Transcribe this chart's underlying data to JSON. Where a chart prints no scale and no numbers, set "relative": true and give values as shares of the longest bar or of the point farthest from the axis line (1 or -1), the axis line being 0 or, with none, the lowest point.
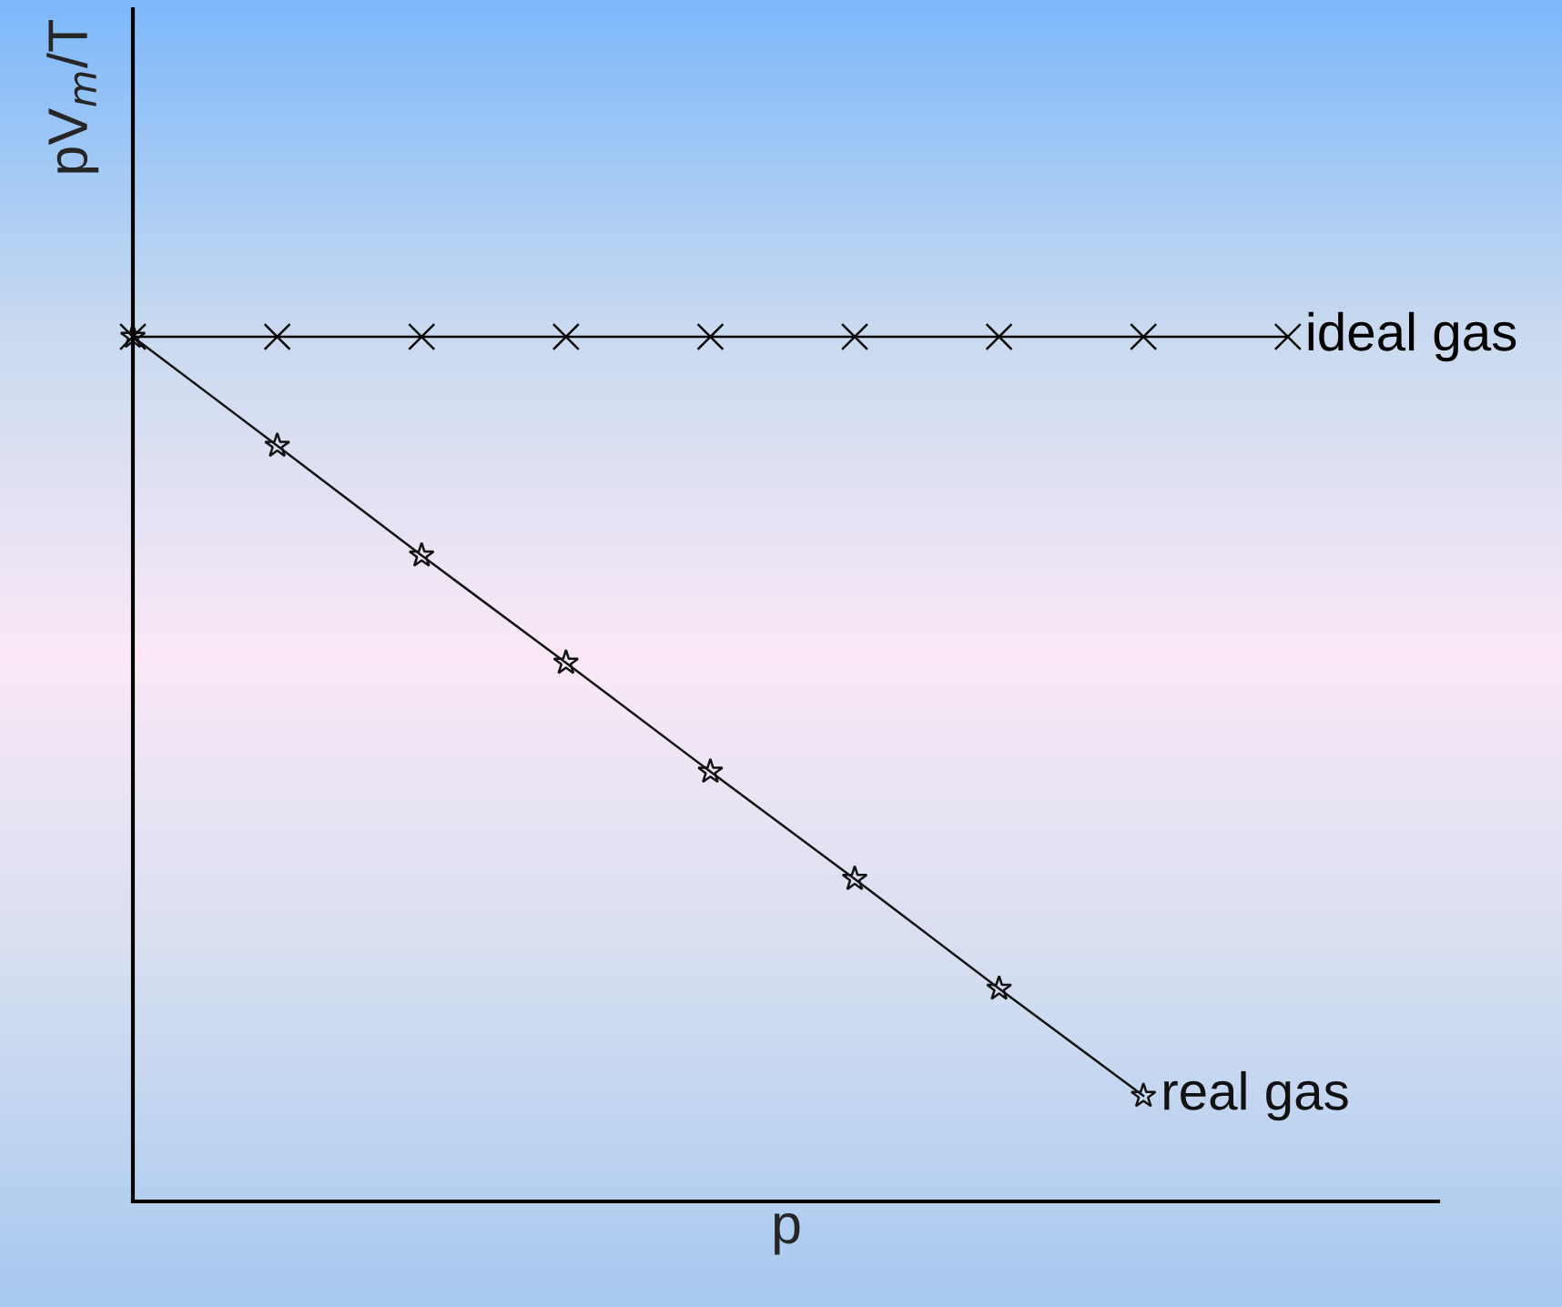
{
  "chart_data": {
    "type": "line",
    "xlabel": "p",
    "ylabel": "pV$_{m}$/T",
    "relative": true,
    "legend": false,
    "line_style": "solid",
    "categories": [
      null,
      null,
      null,
      null,
      null,
      null,
      null,
      null,
      null
    ],
    "series": [
      {
        "name": "ideal gas",
        "color": "#000000",
        "marker": "cross",
        "values": [
          1,
          1,
          1,
          1,
          1,
          1,
          1,
          1,
          1
        ]
      },
      {
        "name": "real gas",
        "color": "#111111",
        "marker": "star",
        "values": [
          1,
          0.874,
          0.747,
          0.623,
          0.497,
          0.373,
          0.246,
          0.122,
          null
        ]
      }
    ]
  }
}
